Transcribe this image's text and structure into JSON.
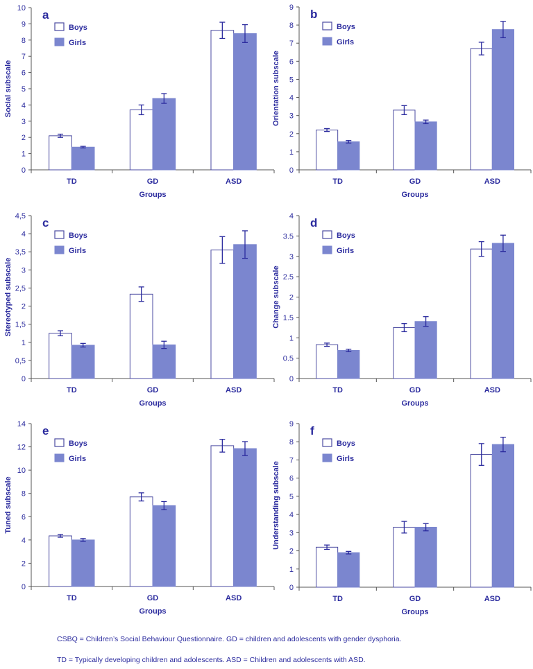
{
  "colors": {
    "text": "#2b2b9e",
    "axis": "#555555",
    "boys_fill": "#ffffff",
    "boys_stroke": "#4a4aa0",
    "girls_fill": "#7b86cf",
    "errorbar": "#2b2b9e"
  },
  "legend": {
    "boys": "Boys",
    "girls": "Girls"
  },
  "captions": {
    "line1": "CSBQ = Children’s Social Behaviour Questionnaire. GD = children and adolescents with gender dysphoria.",
    "line2": "TD = Typically developing children and adolescents. ASD = Children and adolescents with ASD."
  },
  "chart_data": [
    {
      "type": "bar",
      "panel": "a",
      "ylabel": "Social subscale",
      "xlabel": "Groups",
      "categories": [
        "TD",
        "GD",
        "ASD"
      ],
      "ylim": [
        0,
        10
      ],
      "yticks": [
        "0",
        "1",
        "2",
        "3",
        "4",
        "5",
        "6",
        "7",
        "8",
        "9",
        "10"
      ],
      "series": [
        {
          "name": "Boys",
          "values": [
            2.1,
            3.7,
            8.6
          ],
          "errors": [
            0.1,
            0.3,
            0.5
          ]
        },
        {
          "name": "Girls",
          "values": [
            1.4,
            4.4,
            8.4
          ],
          "errors": [
            0.05,
            0.3,
            0.55
          ]
        }
      ]
    },
    {
      "type": "bar",
      "panel": "b",
      "ylabel": "Orientation subscale",
      "xlabel": "Groups",
      "categories": [
        "TD",
        "GD",
        "ASD"
      ],
      "ylim": [
        0,
        9
      ],
      "yticks": [
        "0",
        "1",
        "2",
        "3",
        "4",
        "5",
        "6",
        "7",
        "8",
        "9"
      ],
      "series": [
        {
          "name": "Boys",
          "values": [
            2.2,
            3.3,
            6.7
          ],
          "errors": [
            0.08,
            0.25,
            0.35
          ]
        },
        {
          "name": "Girls",
          "values": [
            1.55,
            2.65,
            7.75
          ],
          "errors": [
            0.07,
            0.1,
            0.45
          ]
        }
      ]
    },
    {
      "type": "bar",
      "panel": "c",
      "ylabel": "Stereotyped subscale",
      "xlabel": "Groups",
      "categories": [
        "TD",
        "GD",
        "ASD"
      ],
      "ylim": [
        0,
        4.5
      ],
      "yticks": [
        "0",
        "0,5",
        "1",
        "1,5",
        "2",
        "2,5",
        "3",
        "3,5",
        "4",
        "4,5"
      ],
      "series": [
        {
          "name": "Boys",
          "values": [
            1.25,
            2.33,
            3.55
          ],
          "errors": [
            0.07,
            0.2,
            0.37
          ]
        },
        {
          "name": "Girls",
          "values": [
            0.92,
            0.93,
            3.7
          ],
          "errors": [
            0.05,
            0.1,
            0.38
          ]
        }
      ]
    },
    {
      "type": "bar",
      "panel": "d",
      "ylabel": "Change subscale",
      "xlabel": "Groups",
      "categories": [
        "TD",
        "GD",
        "ASD"
      ],
      "ylim": [
        0,
        4
      ],
      "yticks": [
        "0",
        "0.5",
        "1",
        "1.5",
        "2",
        "2.5",
        "3",
        "3.5",
        "4"
      ],
      "series": [
        {
          "name": "Boys",
          "values": [
            0.83,
            1.25,
            3.18
          ],
          "errors": [
            0.04,
            0.1,
            0.18
          ]
        },
        {
          "name": "Girls",
          "values": [
            0.69,
            1.4,
            3.32
          ],
          "errors": [
            0.03,
            0.12,
            0.2
          ]
        }
      ]
    },
    {
      "type": "bar",
      "panel": "e",
      "ylabel": "Tuned subscale",
      "xlabel": "Groups",
      "categories": [
        "TD",
        "GD",
        "ASD"
      ],
      "ylim": [
        0,
        14
      ],
      "yticks": [
        "0",
        "2",
        "4",
        "6",
        "8",
        "10",
        "12",
        "14"
      ],
      "series": [
        {
          "name": "Boys",
          "values": [
            4.35,
            7.7,
            12.1
          ],
          "errors": [
            0.12,
            0.35,
            0.55
          ]
        },
        {
          "name": "Girls",
          "values": [
            4.0,
            6.95,
            11.85
          ],
          "errors": [
            0.12,
            0.35,
            0.6
          ]
        }
      ]
    },
    {
      "type": "bar",
      "panel": "f",
      "ylabel": "Understanding subscale",
      "xlabel": "Groups",
      "categories": [
        "TD",
        "GD",
        "ASD"
      ],
      "ylim": [
        0,
        9
      ],
      "yticks": [
        "0",
        "1",
        "2",
        "3",
        "4",
        "5",
        "6",
        "7",
        "8",
        "9"
      ],
      "series": [
        {
          "name": "Boys",
          "values": [
            2.2,
            3.3,
            7.3
          ],
          "errors": [
            0.12,
            0.32,
            0.6
          ]
        },
        {
          "name": "Girls",
          "values": [
            1.9,
            3.3,
            7.85
          ],
          "errors": [
            0.07,
            0.2,
            0.4
          ]
        }
      ]
    }
  ]
}
